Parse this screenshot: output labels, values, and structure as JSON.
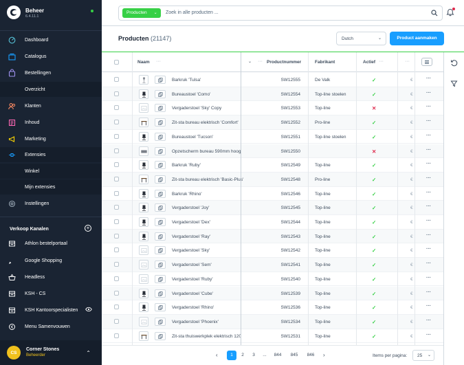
{
  "app": {
    "title": "Beheer",
    "version": "6.4.11.1",
    "status_color": "#37d046"
  },
  "sidebar": {
    "items": [
      {
        "label": "Dashboard",
        "icon": "dashboard-icon",
        "color": "#56c1d7"
      },
      {
        "label": "Catalogus",
        "icon": "catalog-icon",
        "color": "#189eff"
      },
      {
        "label": "Bestellingen",
        "icon": "orders-icon",
        "color": "#a092f0"
      },
      {
        "label": "Overzicht",
        "sub": true
      },
      {
        "label": "Klanten",
        "icon": "customers-icon",
        "color": "#f88962"
      },
      {
        "label": "Inhoud",
        "icon": "content-icon",
        "color": "#ff68b4"
      },
      {
        "label": "Marketing",
        "icon": "marketing-icon",
        "color": "#ffd700"
      },
      {
        "label": "Extensies",
        "icon": "extensions-icon",
        "color": "#189eff"
      },
      {
        "label": "Winkel",
        "sub": true
      },
      {
        "label": "Mijn extensies",
        "sub": true
      },
      {
        "label": "Instellingen",
        "icon": "settings-icon",
        "color": "#9aa8b5"
      }
    ],
    "sales_channels_title": "Verkoop Kanalen",
    "sales_channels": [
      {
        "label": "Athlon bestelportaal",
        "icon": "storefront-icon"
      },
      {
        "label": "Google Shopping",
        "icon": "rocket-icon"
      },
      {
        "label": "Headless",
        "icon": "basket-icon"
      },
      {
        "label": "KSH - CS",
        "icon": "storefront-icon"
      },
      {
        "label": "KSH Kantoorspecialisten",
        "icon": "storefront-icon"
      },
      {
        "label": "Menu Samenvouwen",
        "icon": "collapse-icon"
      }
    ]
  },
  "user": {
    "initials": "CS",
    "name": "Corner Stones",
    "role": "Beheerder"
  },
  "search": {
    "chip": "Producten",
    "placeholder": "Zoek in alle producten ..."
  },
  "header": {
    "title": "Producten",
    "count": "(21147)",
    "language": "Dutch",
    "create_label": "Product aanmaken"
  },
  "grid": {
    "columns": {
      "name": "Naam",
      "number": "Productnummer",
      "manufacturer": "Fabrikant",
      "active": "Actief"
    },
    "rows": [
      {
        "name": "Barkruk 'Tulsa'",
        "number": "SW12555",
        "manufacturer": "De Valk",
        "active": true,
        "thumb": "stool"
      },
      {
        "name": "Bureaustoel 'Como'",
        "number": "SW12554",
        "manufacturer": "Top-line stoelen",
        "active": true,
        "thumb": "chair"
      },
      {
        "name": "Vergaderstoel 'Sky' Copy",
        "number": "SW12553",
        "manufacturer": "Top-line",
        "active": false,
        "thumb": "placeholder"
      },
      {
        "name": "Zit-sta bureau elektrisch 'Comfort'",
        "number": "SW12552",
        "manufacturer": "Pro-line",
        "active": true,
        "thumb": "desk"
      },
      {
        "name": "Bureaustoel 'Tucson'",
        "number": "SW12551",
        "manufacturer": "Top-line stoelen",
        "active": true,
        "thumb": "chair"
      },
      {
        "name": "Opzetscherm bureau 590mm hoog",
        "number": "SW12550",
        "manufacturer": "",
        "active": false,
        "thumb": "screen"
      },
      {
        "name": "Barkruk 'Ruby'",
        "number": "SW12549",
        "manufacturer": "Top-line",
        "active": true,
        "thumb": "chair"
      },
      {
        "name": "Zit-sta bureau elektrisch 'Basic-Plus'",
        "number": "SW12548",
        "manufacturer": "Pro-line",
        "active": true,
        "thumb": "desk"
      },
      {
        "name": "Barkruk 'Rhino'",
        "number": "SW12546",
        "manufacturer": "Top-line",
        "active": true,
        "thumb": "chair"
      },
      {
        "name": "Vergaderstoel 'Joy'",
        "number": "SW12545",
        "manufacturer": "Top-line",
        "active": true,
        "thumb": "chair"
      },
      {
        "name": "Vergaderstoel 'Dex'",
        "number": "SW12544",
        "manufacturer": "Top-line",
        "active": true,
        "thumb": "chair"
      },
      {
        "name": "Vergaderstoel 'Ray'",
        "number": "SW12543",
        "manufacturer": "Top-line",
        "active": true,
        "thumb": "chair"
      },
      {
        "name": "Vergaderstoel 'Sky'",
        "number": "SW12542",
        "manufacturer": "Top-line",
        "active": true,
        "thumb": "placeholder"
      },
      {
        "name": "Vergaderstoel 'Sem'",
        "number": "SW12541",
        "manufacturer": "Top-line",
        "active": true,
        "thumb": "placeholder"
      },
      {
        "name": "Vergaderstoel 'Ruby'",
        "number": "SW12540",
        "manufacturer": "Top-line",
        "active": true,
        "thumb": "placeholder"
      },
      {
        "name": "Vergaderstoel 'Cube'",
        "number": "SW12539",
        "manufacturer": "Top-line",
        "active": true,
        "thumb": "chair"
      },
      {
        "name": "Vergaderstoel 'Rhino'",
        "number": "SW12536",
        "manufacturer": "Top-line",
        "active": true,
        "thumb": "chair"
      },
      {
        "name": "Vergaderstoel 'Phoenix'",
        "number": "SW12534",
        "manufacturer": "Top-line",
        "active": true,
        "thumb": "placeholder"
      },
      {
        "name": "Zit-sta thuiswerkplek elektrisch 120",
        "number": "SW12531",
        "manufacturer": "Top-line",
        "active": true,
        "thumb": "desk"
      }
    ],
    "price_prefix": "€"
  },
  "pagination": {
    "pages": [
      "1",
      "2",
      "3",
      "...",
      "844",
      "845",
      "846"
    ],
    "active": "1",
    "per_page_label": "Items per pagina:",
    "per_page": "25"
  }
}
